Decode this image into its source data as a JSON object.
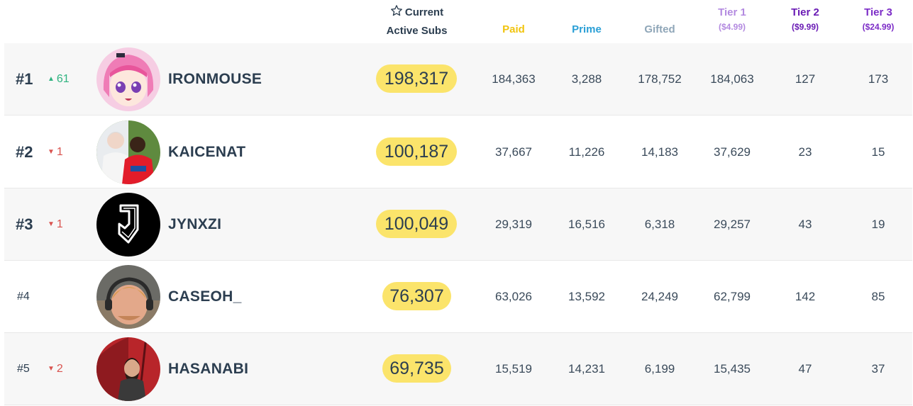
{
  "header": {
    "current_label_1": "Current",
    "current_label_2": "Active Subs",
    "paid": "Paid",
    "prime": "Prime",
    "gifted": "Gifted",
    "tier1": "Tier 1",
    "tier1_price": "($4.99)",
    "tier2": "Tier 2",
    "tier2_price": "($9.99)",
    "tier3": "Tier 3",
    "tier3_price": "($24.99)"
  },
  "colors": {
    "paid": "#f1c40f",
    "prime": "#2a9fd6",
    "gifted": "#8fa6b8",
    "tier1": "#b38ae0",
    "tier2": "#6a1bb5",
    "tier3": "#7c2cc7",
    "subs_pill": "#fbe46b",
    "rank_up": "#2fb380",
    "rank_down": "#d9534f"
  },
  "rows": [
    {
      "rank": "#1",
      "change": "61",
      "direction": "up",
      "name": "IRONMOUSE",
      "current": "198,317",
      "paid": "184,363",
      "prime": "3,288",
      "gifted": "178,752",
      "tier1": "184,063",
      "tier2": "127",
      "tier3": "173",
      "avatar_icon": "anime-girl-avatar-icon"
    },
    {
      "rank": "#2",
      "change": "1",
      "direction": "down",
      "name": "KAICENAT",
      "current": "100,187",
      "paid": "37,667",
      "prime": "11,226",
      "gifted": "14,183",
      "tier1": "37,629",
      "tier2": "23",
      "tier3": "15",
      "avatar_icon": "photo-avatar-icon"
    },
    {
      "rank": "#3",
      "change": "1",
      "direction": "down",
      "name": "JYNXZI",
      "current": "100,049",
      "paid": "29,319",
      "prime": "16,516",
      "gifted": "6,318",
      "tier1": "29,257",
      "tier2": "43",
      "tier3": "19",
      "avatar_icon": "shield-logo-avatar-icon"
    },
    {
      "rank": "#4",
      "change": "",
      "direction": "none",
      "name": "CASEOH_",
      "current": "76,307",
      "paid": "63,026",
      "prime": "13,592",
      "gifted": "24,249",
      "tier1": "62,799",
      "tier2": "142",
      "tier3": "85",
      "avatar_icon": "headset-avatar-icon"
    },
    {
      "rank": "#5",
      "change": "2",
      "direction": "down",
      "name": "HASANABI",
      "current": "69,735",
      "paid": "15,519",
      "prime": "14,231",
      "gifted": "6,199",
      "tier1": "15,435",
      "tier2": "47",
      "tier3": "37",
      "avatar_icon": "portrait-avatar-icon"
    }
  ]
}
